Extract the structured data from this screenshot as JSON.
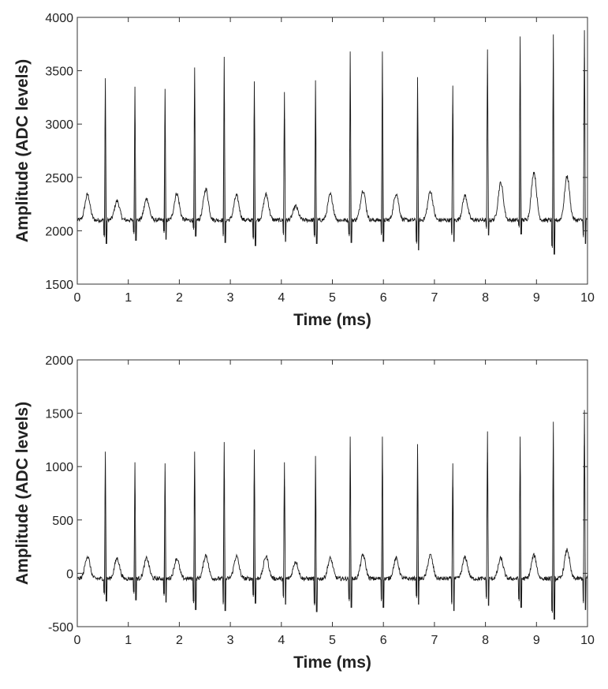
{
  "chart_data": [
    {
      "type": "line",
      "title": "",
      "xlabel": "Time (ms)",
      "ylabel": "Amplitude (ADC levels)",
      "xlim": [
        0,
        10
      ],
      "ylim": [
        1500,
        4000
      ],
      "xticks": [
        "0",
        "1",
        "2",
        "3",
        "4",
        "5",
        "6",
        "7",
        "8",
        "9",
        "10"
      ],
      "yticks": [
        "1500",
        "2000",
        "2500",
        "3000",
        "3500",
        "4000"
      ],
      "grid": false,
      "baseline": 2100,
      "spikes": {
        "x": [
          0.55,
          1.13,
          1.72,
          2.3,
          2.88,
          3.47,
          4.06,
          4.67,
          5.35,
          5.98,
          6.67,
          7.36,
          8.04,
          8.68,
          9.33,
          9.94
        ],
        "peak": [
          3430,
          3350,
          3330,
          3530,
          3630,
          3400,
          3300,
          3410,
          3680,
          3680,
          3440,
          3360,
          3700,
          3820,
          3840,
          3880
        ],
        "trough": [
          1880,
          1910,
          1920,
          1950,
          1890,
          1860,
          1900,
          1880,
          1890,
          1900,
          1820,
          1900,
          1960,
          1970,
          1780,
          1880
        ]
      },
      "t_waves": {
        "x": [
          0.2,
          0.78,
          1.36,
          1.95,
          2.52,
          3.12,
          3.7,
          4.28,
          4.96,
          5.6,
          6.25,
          6.92,
          7.6,
          8.3,
          8.95,
          9.6
        ],
        "peak": [
          2340,
          2280,
          2300,
          2350,
          2390,
          2330,
          2340,
          2230,
          2340,
          2380,
          2350,
          2370,
          2330,
          2450,
          2550,
          2510
        ]
      }
    },
    {
      "type": "line",
      "title": "",
      "xlabel": "Time (ms)",
      "ylabel": "Amplitude (ADC levels)",
      "xlim": [
        0,
        10
      ],
      "ylim": [
        -500,
        2000
      ],
      "xticks": [
        "0",
        "1",
        "2",
        "3",
        "4",
        "5",
        "6",
        "7",
        "8",
        "9",
        "10"
      ],
      "yticks": [
        "-500",
        "0",
        "500",
        "1000",
        "1500",
        "2000"
      ],
      "grid": false,
      "baseline": -50,
      "spikes": {
        "x": [
          0.55,
          1.13,
          1.72,
          2.3,
          2.88,
          3.47,
          4.06,
          4.67,
          5.35,
          5.98,
          6.67,
          7.36,
          8.04,
          8.68,
          9.33,
          9.94
        ],
        "peak": [
          1140,
          1040,
          1030,
          1140,
          1230,
          1160,
          1040,
          1100,
          1280,
          1280,
          1210,
          1030,
          1330,
          1280,
          1420,
          1530
        ],
        "trough": [
          -260,
          -250,
          -270,
          -340,
          -350,
          -280,
          -290,
          -360,
          -320,
          -320,
          -290,
          -350,
          -300,
          -320,
          -430,
          -340
        ]
      },
      "t_waves": {
        "x": [
          0.2,
          0.78,
          1.36,
          1.95,
          2.52,
          3.12,
          3.7,
          4.28,
          4.96,
          5.6,
          6.25,
          6.92,
          7.6,
          8.3,
          8.95,
          9.6
        ],
        "peak": [
          160,
          140,
          140,
          140,
          170,
          160,
          160,
          110,
          140,
          170,
          140,
          170,
          150,
          140,
          170,
          220
        ]
      }
    }
  ]
}
